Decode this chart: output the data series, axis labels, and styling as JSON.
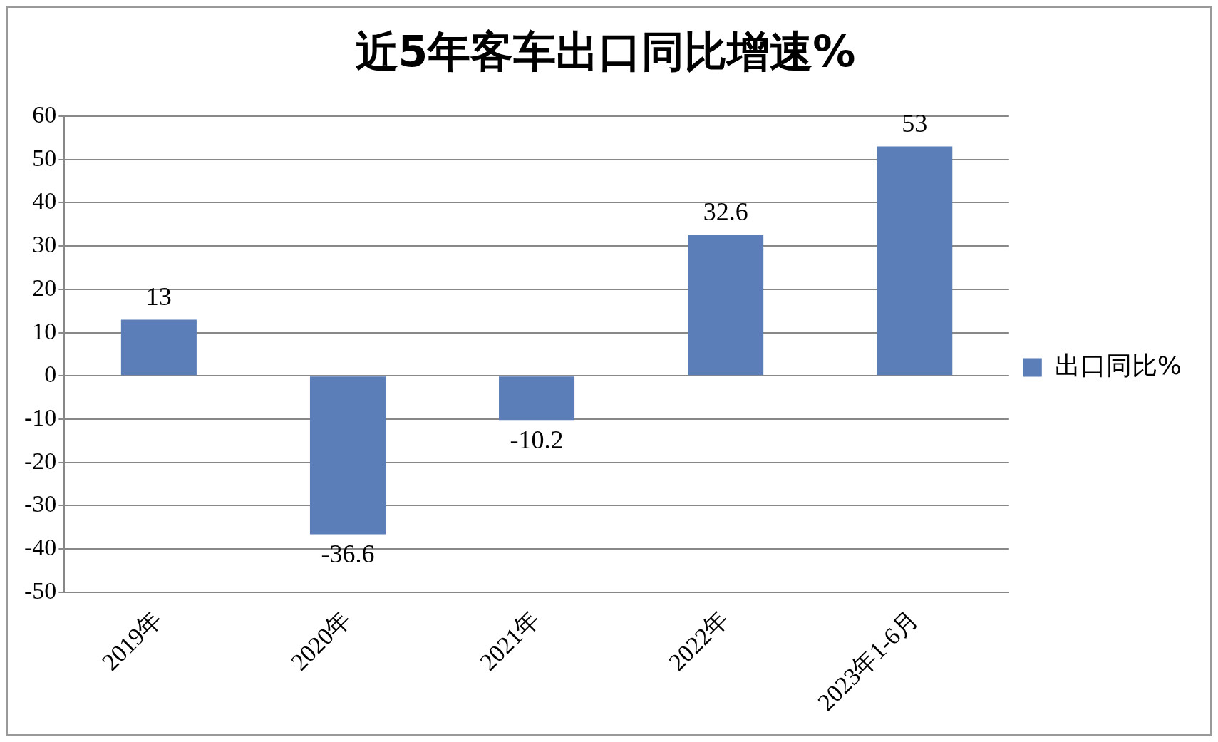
{
  "chart_data": {
    "type": "bar",
    "title": "近5年客车出口同比增速%",
    "categories": [
      "2019年",
      "2020年",
      "2021年",
      "2022年",
      "2023年1-6月"
    ],
    "series": [
      {
        "name": "出口同比%",
        "color": "#5b7db8",
        "values": [
          13,
          -36.6,
          -10.2,
          32.6,
          53
        ]
      }
    ],
    "ylim": [
      -50,
      60
    ],
    "yticks": [
      -50,
      -40,
      -30,
      -20,
      -10,
      0,
      10,
      20,
      30,
      40,
      50,
      60
    ],
    "grid": "y",
    "legend": "right",
    "data_labels": true
  }
}
